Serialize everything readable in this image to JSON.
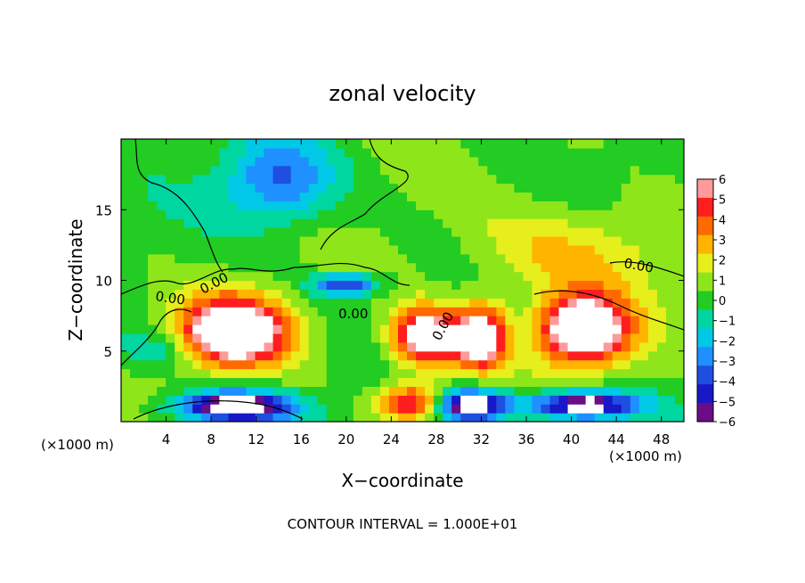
{
  "chart_data": {
    "type": "heatmap",
    "title": "zonal velocity",
    "xlabel": "X−coordinate",
    "ylabel": "Z−coordinate",
    "x_unit": "(×1000 m)",
    "x_unit_right": "(×1000 m)",
    "xlim": [
      0,
      50
    ],
    "ylim": [
      0,
      20
    ],
    "x_ticks": [
      4,
      8,
      12,
      16,
      20,
      24,
      28,
      32,
      36,
      40,
      44,
      48
    ],
    "y_ticks": [
      5,
      10,
      15
    ],
    "contour_interval_text": "CONTOUR INTERVAL = 1.000E+01",
    "contour_labels": [
      "0.00",
      "0.00",
      "0.00",
      "0.00",
      "0.00"
    ],
    "colorbar": {
      "range": [
        -6,
        6
      ],
      "ticks": [
        "6",
        "5",
        "4",
        "3",
        "2",
        "1",
        "0",
        "−1",
        "−2",
        "−3",
        "−4",
        "−5",
        "−6"
      ],
      "colors": [
        "#6a0d87",
        "#1818c8",
        "#1f4fe0",
        "#1e90ff",
        "#00c8e6",
        "#00d6a0",
        "#22cc22",
        "#8ee61a",
        "#e6ee1c",
        "#ffb400",
        "#ff6a00",
        "#ff1e1e",
        "#ff9a9a"
      ],
      "saturation_color": "#ffffff"
    },
    "blobs": [
      {
        "x": 10,
        "z": 6.4,
        "rx": 4.8,
        "rz": 2.4,
        "v": 9
      },
      {
        "x": 10,
        "z": 1.1,
        "rx": 5.2,
        "rz": 1.1,
        "v": -8
      },
      {
        "x": 27,
        "z": 6.0,
        "rx": 3.0,
        "rz": 2.1,
        "v": 8
      },
      {
        "x": 32,
        "z": 6.0,
        "rx": 2.3,
        "rz": 2.2,
        "v": 8
      },
      {
        "x": 31,
        "z": 1.2,
        "rx": 3.2,
        "rz": 1.1,
        "v": -8
      },
      {
        "x": 41,
        "z": 6.5,
        "rx": 4.0,
        "rz": 2.4,
        "v": 9
      },
      {
        "x": 41,
        "z": 1.2,
        "rx": 5.0,
        "rz": 1.0,
        "v": -8
      },
      {
        "x": 26,
        "z": 1.4,
        "rx": 3.0,
        "rz": 1.3,
        "v": 6
      },
      {
        "x": 14,
        "z": 17.0,
        "rx": 5.0,
        "rz": 3.0,
        "v": -4
      },
      {
        "x": 20,
        "z": 9.7,
        "rx": 3.0,
        "rz": 0.8,
        "v": -5
      },
      {
        "x": 40,
        "z": 12.0,
        "rx": 9.0,
        "rz": 3.5,
        "v": 2.5
      },
      {
        "x": 3,
        "z": 5.0,
        "rx": 3.5,
        "rz": 1.5,
        "v": -2
      }
    ]
  }
}
